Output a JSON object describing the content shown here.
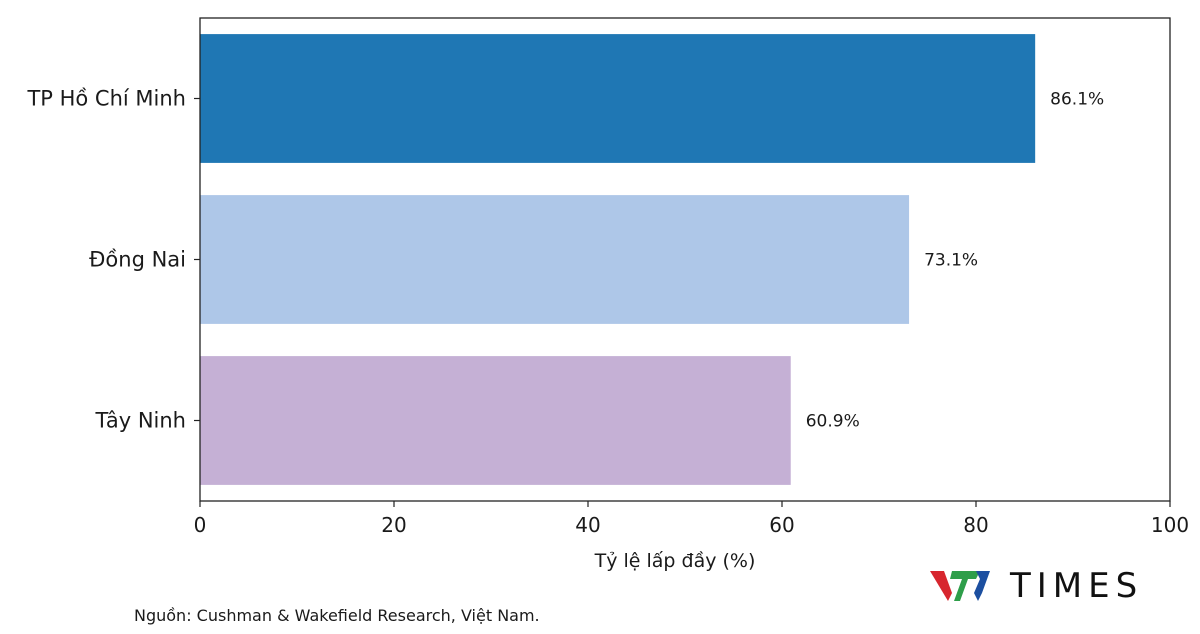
{
  "chart_data": {
    "type": "bar",
    "orientation": "horizontal",
    "categories": [
      "TP Hồ Chí Minh",
      "Đồng Nai",
      "Tây Ninh"
    ],
    "values": [
      86.1,
      73.1,
      60.9
    ],
    "value_labels": [
      "86.1%",
      "73.1%",
      "60.9%"
    ],
    "colors": [
      "#1f77b4",
      "#aec7e8",
      "#c5b0d5"
    ],
    "xlabel": "Tỷ lệ lấp đầy (%)",
    "ylabel": "",
    "xlim": [
      0,
      100
    ],
    "xticks": [
      0,
      20,
      40,
      60,
      80,
      100
    ],
    "grid": false
  },
  "source": "Nguồn: Cushman & Wakefield Research, Việt Nam.",
  "logo": {
    "text": "TIMES",
    "colors": {
      "red": "#d7262e",
      "blue": "#1c4fa0",
      "green": "#2e9e4a"
    }
  }
}
